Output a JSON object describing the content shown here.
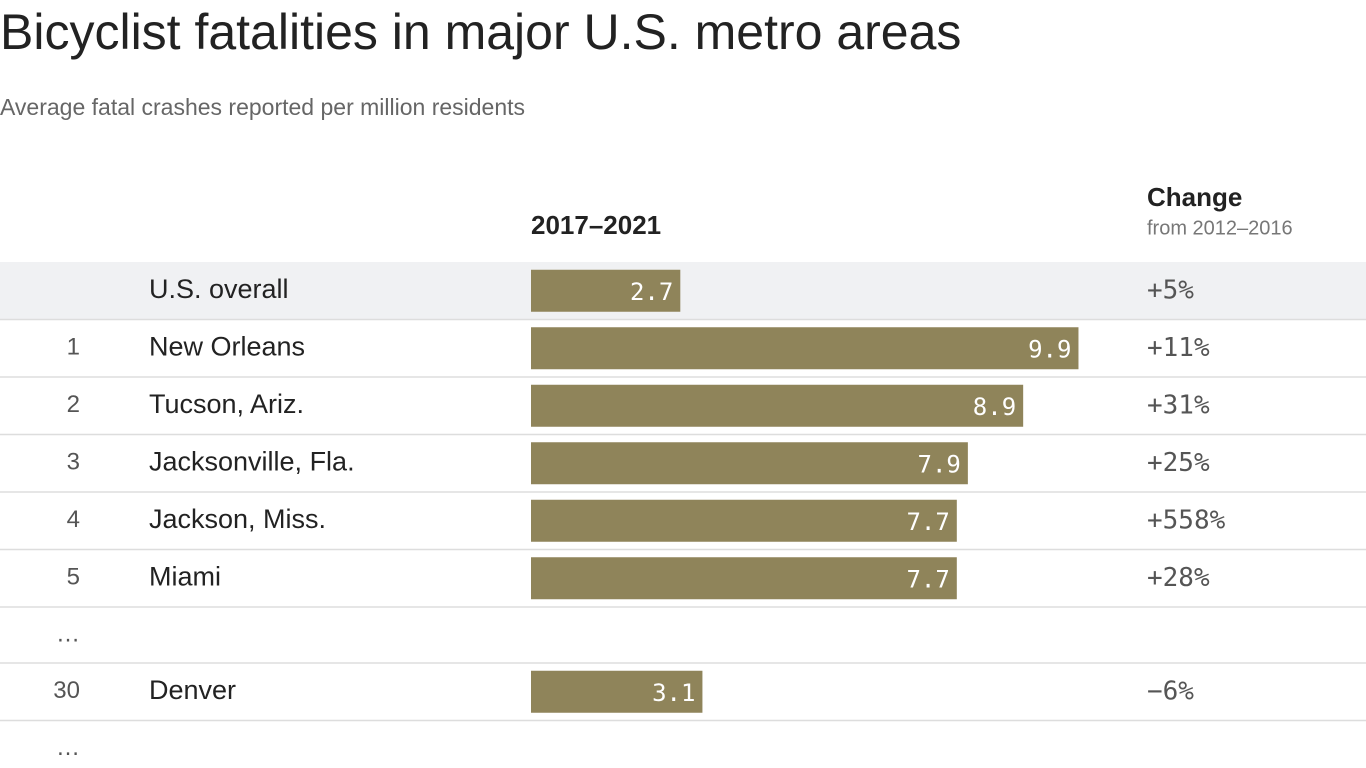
{
  "chart_data": {
    "type": "bar",
    "title": "Bicyclist fatalities in major U.S. metro areas",
    "subtitle": "Average fatal crashes reported per million residents",
    "value_header": "2017–2021",
    "change_header": "Change",
    "change_subheader": "from 2012–2016",
    "color": "#8f845a",
    "rows": [
      {
        "name": "U.S. overall",
        "value": 2.7,
        "change": "+5%"
      },
      {
        "rank": 1,
        "name": "New Orleans",
        "value": 9.9,
        "change": "+11%"
      },
      {
        "rank": 2,
        "name": "Tucson, Ariz.",
        "value": 8.9,
        "change": "+31%"
      },
      {
        "rank": 3,
        "name": "Jacksonville, Fla.",
        "value": 7.9,
        "change": "+25%"
      },
      {
        "rank": 4,
        "name": "Jackson, Miss.",
        "value": 7.7,
        "change": "+558%"
      },
      {
        "rank": 5,
        "name": "Miami",
        "value": 7.7,
        "change": "+28%"
      },
      {
        "rank": "…"
      },
      {
        "rank": 30,
        "name": "Denver",
        "value": 3.1,
        "change": "−6%"
      },
      {
        "rank": "…"
      }
    ]
  }
}
